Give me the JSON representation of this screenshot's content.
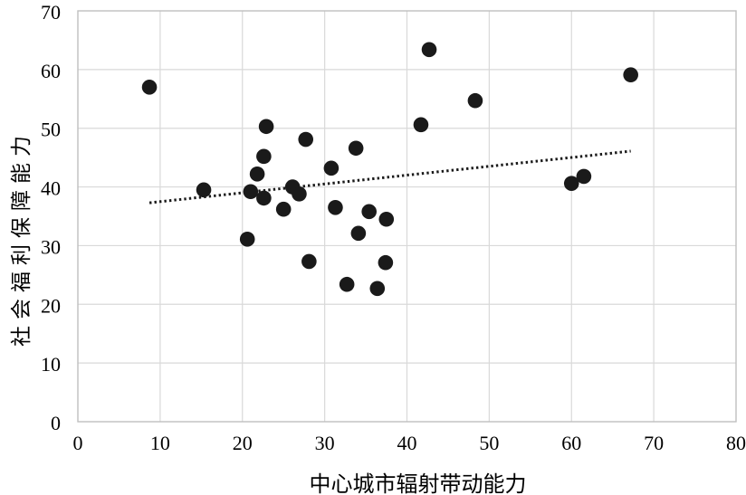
{
  "chart_data": {
    "type": "scatter",
    "title": "",
    "xlabel": "中心城市辐射带动能力",
    "ylabel": "社会福利保障能力",
    "xlim": [
      0,
      80
    ],
    "ylim": [
      0,
      70
    ],
    "x_ticks": [
      0,
      10,
      20,
      30,
      40,
      50,
      60,
      70,
      80
    ],
    "y_ticks": [
      0,
      10,
      20,
      30,
      40,
      50,
      60,
      70
    ],
    "grid": "both",
    "legend": "none",
    "series": [
      {
        "name": "scatter-points",
        "marker": "circle",
        "marker_color": "#1a1a1a",
        "points": [
          [
            8.7,
            57.0
          ],
          [
            15.3,
            39.5
          ],
          [
            20.6,
            31.1
          ],
          [
            21.0,
            39.2
          ],
          [
            21.8,
            42.2
          ],
          [
            22.6,
            45.2
          ],
          [
            22.6,
            38.1
          ],
          [
            22.9,
            50.3
          ],
          [
            25.0,
            36.2
          ],
          [
            26.1,
            40.0
          ],
          [
            26.9,
            38.8
          ],
          [
            27.7,
            48.1
          ],
          [
            28.1,
            27.3
          ],
          [
            30.8,
            43.2
          ],
          [
            31.3,
            36.5
          ],
          [
            32.7,
            23.4
          ],
          [
            33.8,
            46.6
          ],
          [
            34.1,
            32.1
          ],
          [
            35.4,
            35.8
          ],
          [
            36.4,
            22.7
          ],
          [
            37.5,
            34.5
          ],
          [
            37.4,
            27.1
          ],
          [
            41.7,
            50.6
          ],
          [
            42.7,
            63.4
          ],
          [
            48.3,
            54.7
          ],
          [
            60.0,
            40.6
          ],
          [
            61.5,
            41.8
          ],
          [
            67.2,
            59.1
          ]
        ]
      }
    ],
    "trendline": {
      "style": "dotted",
      "color": "#1a1a1a",
      "x1": 8.7,
      "y1": 37.3,
      "x2": 67.2,
      "y2": 46.1
    }
  },
  "colors": {
    "background": "#ffffff",
    "grid": "#d9d9d9",
    "border": "#bfbfbf",
    "dot": "#1a1a1a",
    "text": "#000000"
  }
}
